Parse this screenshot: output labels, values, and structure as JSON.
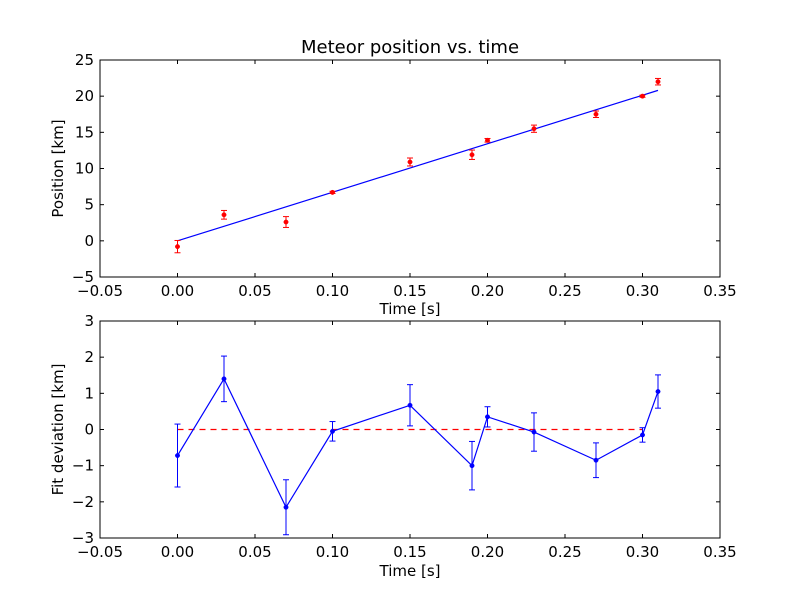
{
  "chart_data": [
    {
      "type": "scatter",
      "title": "Meteor position vs. time",
      "xlabel": "Time [s]",
      "ylabel": "Position [km]",
      "xlim": [
        -0.05,
        0.35
      ],
      "ylim": [
        -5,
        25
      ],
      "xticks": [
        -0.05,
        0.0,
        0.05,
        0.1,
        0.15,
        0.2,
        0.25,
        0.3,
        0.35
      ],
      "xtick_labels": [
        "−0.05",
        "0.00",
        "0.05",
        "0.10",
        "0.15",
        "0.20",
        "0.25",
        "0.30",
        "0.35"
      ],
      "yticks": [
        -5,
        0,
        5,
        10,
        15,
        20,
        25
      ],
      "ytick_labels": [
        "−5",
        "0",
        "5",
        "10",
        "15",
        "20",
        "25"
      ],
      "grid": false,
      "colors": {
        "points": "#ff0000",
        "fit": "#0000ff"
      },
      "series": [
        {
          "kind": "errorbar",
          "marker": "point",
          "x": [
            0.0,
            0.03,
            0.07,
            0.1,
            0.15,
            0.19,
            0.2,
            0.23,
            0.27,
            0.3,
            0.31
          ],
          "y": [
            -0.8,
            3.6,
            2.6,
            6.7,
            10.9,
            11.9,
            13.9,
            15.5,
            17.5,
            20.0,
            22.0
          ],
          "yerr": [
            0.85,
            0.6,
            0.75,
            0.15,
            0.55,
            0.65,
            0.25,
            0.5,
            0.45,
            0.15,
            0.45
          ]
        },
        {
          "kind": "line",
          "x": [
            0.0,
            0.31
          ],
          "y": [
            0.0,
            20.8
          ]
        }
      ]
    },
    {
      "type": "line",
      "title": "",
      "xlabel": "Time [s]",
      "ylabel": "Fit deviation [km]",
      "xlim": [
        -0.05,
        0.35
      ],
      "ylim": [
        -3,
        3
      ],
      "xticks": [
        -0.05,
        0.0,
        0.05,
        0.1,
        0.15,
        0.2,
        0.25,
        0.3,
        0.35
      ],
      "xtick_labels": [
        "−0.05",
        "0.00",
        "0.05",
        "0.10",
        "0.15",
        "0.20",
        "0.25",
        "0.30",
        "0.35"
      ],
      "yticks": [
        -3,
        -2,
        -1,
        0,
        1,
        2,
        3
      ],
      "ytick_labels": [
        "−3",
        "−2",
        "−1",
        "0",
        "1",
        "2",
        "3"
      ],
      "grid": false,
      "colors": {
        "deviation": "#0000ff",
        "zero_line": "#ff0000"
      },
      "series": [
        {
          "kind": "errorbar-line",
          "marker": "point",
          "x": [
            0.0,
            0.03,
            0.07,
            0.1,
            0.15,
            0.19,
            0.2,
            0.23,
            0.27,
            0.3,
            0.31
          ],
          "y": [
            -0.72,
            1.4,
            -2.15,
            -0.05,
            0.67,
            -1.0,
            0.35,
            -0.07,
            -0.85,
            -0.15,
            1.05
          ],
          "yerr": [
            0.87,
            0.63,
            0.76,
            0.27,
            0.57,
            0.67,
            0.28,
            0.53,
            0.48,
            0.2,
            0.46
          ]
        },
        {
          "kind": "dashed-line",
          "x": [
            0.0,
            0.3
          ],
          "y": [
            0.0,
            0.0
          ]
        }
      ]
    }
  ]
}
